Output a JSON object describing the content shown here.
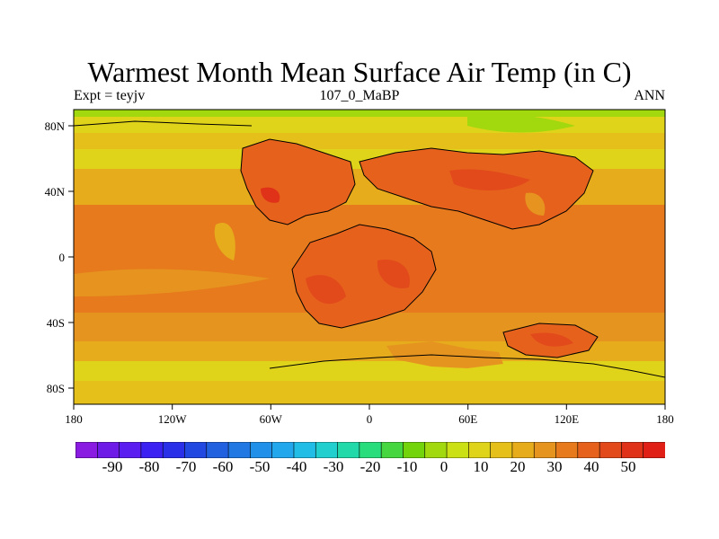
{
  "title": "Warmest Month Mean Surface Air Temp (in C)",
  "subtitle_left": "Expt = teyjv",
  "subtitle_center": "107_0_MaBP",
  "subtitle_right": "ANN",
  "map": {
    "projection": "cylindrical-equidistant",
    "lon_range": [
      -180,
      180
    ],
    "lat_range": [
      -90,
      90
    ],
    "x_tick_labels": [
      "180",
      "120W",
      "60W",
      "0",
      "60E",
      "120E",
      "180"
    ],
    "y_tick_labels": [
      "80N",
      "40N",
      "0",
      "40S",
      "80S"
    ],
    "variable": "warmest month mean surface air temperature",
    "units": "C"
  },
  "colorbar": {
    "levels_labels": [
      "-90",
      "-80",
      "-70",
      "-60",
      "-50",
      "-40",
      "-30",
      "-20",
      "-10",
      "0",
      "10",
      "20",
      "30",
      "40",
      "50"
    ],
    "colors": [
      "#8a1be0",
      "#6f1be8",
      "#5a1ff0",
      "#3c22f2",
      "#2a2fe8",
      "#2148e0",
      "#2161e0",
      "#2178e2",
      "#2190e8",
      "#22a6ec",
      "#21bde6",
      "#22cfcf",
      "#22d9aa",
      "#29dc7c",
      "#45d640",
      "#74d40c",
      "#a2d80e",
      "#cce016",
      "#e0d41a",
      "#e6c01a",
      "#e6ac1c",
      "#e69420",
      "#e67a1c",
      "#e6621c",
      "#e24a1c",
      "#e03218",
      "#e02016"
    ]
  }
}
